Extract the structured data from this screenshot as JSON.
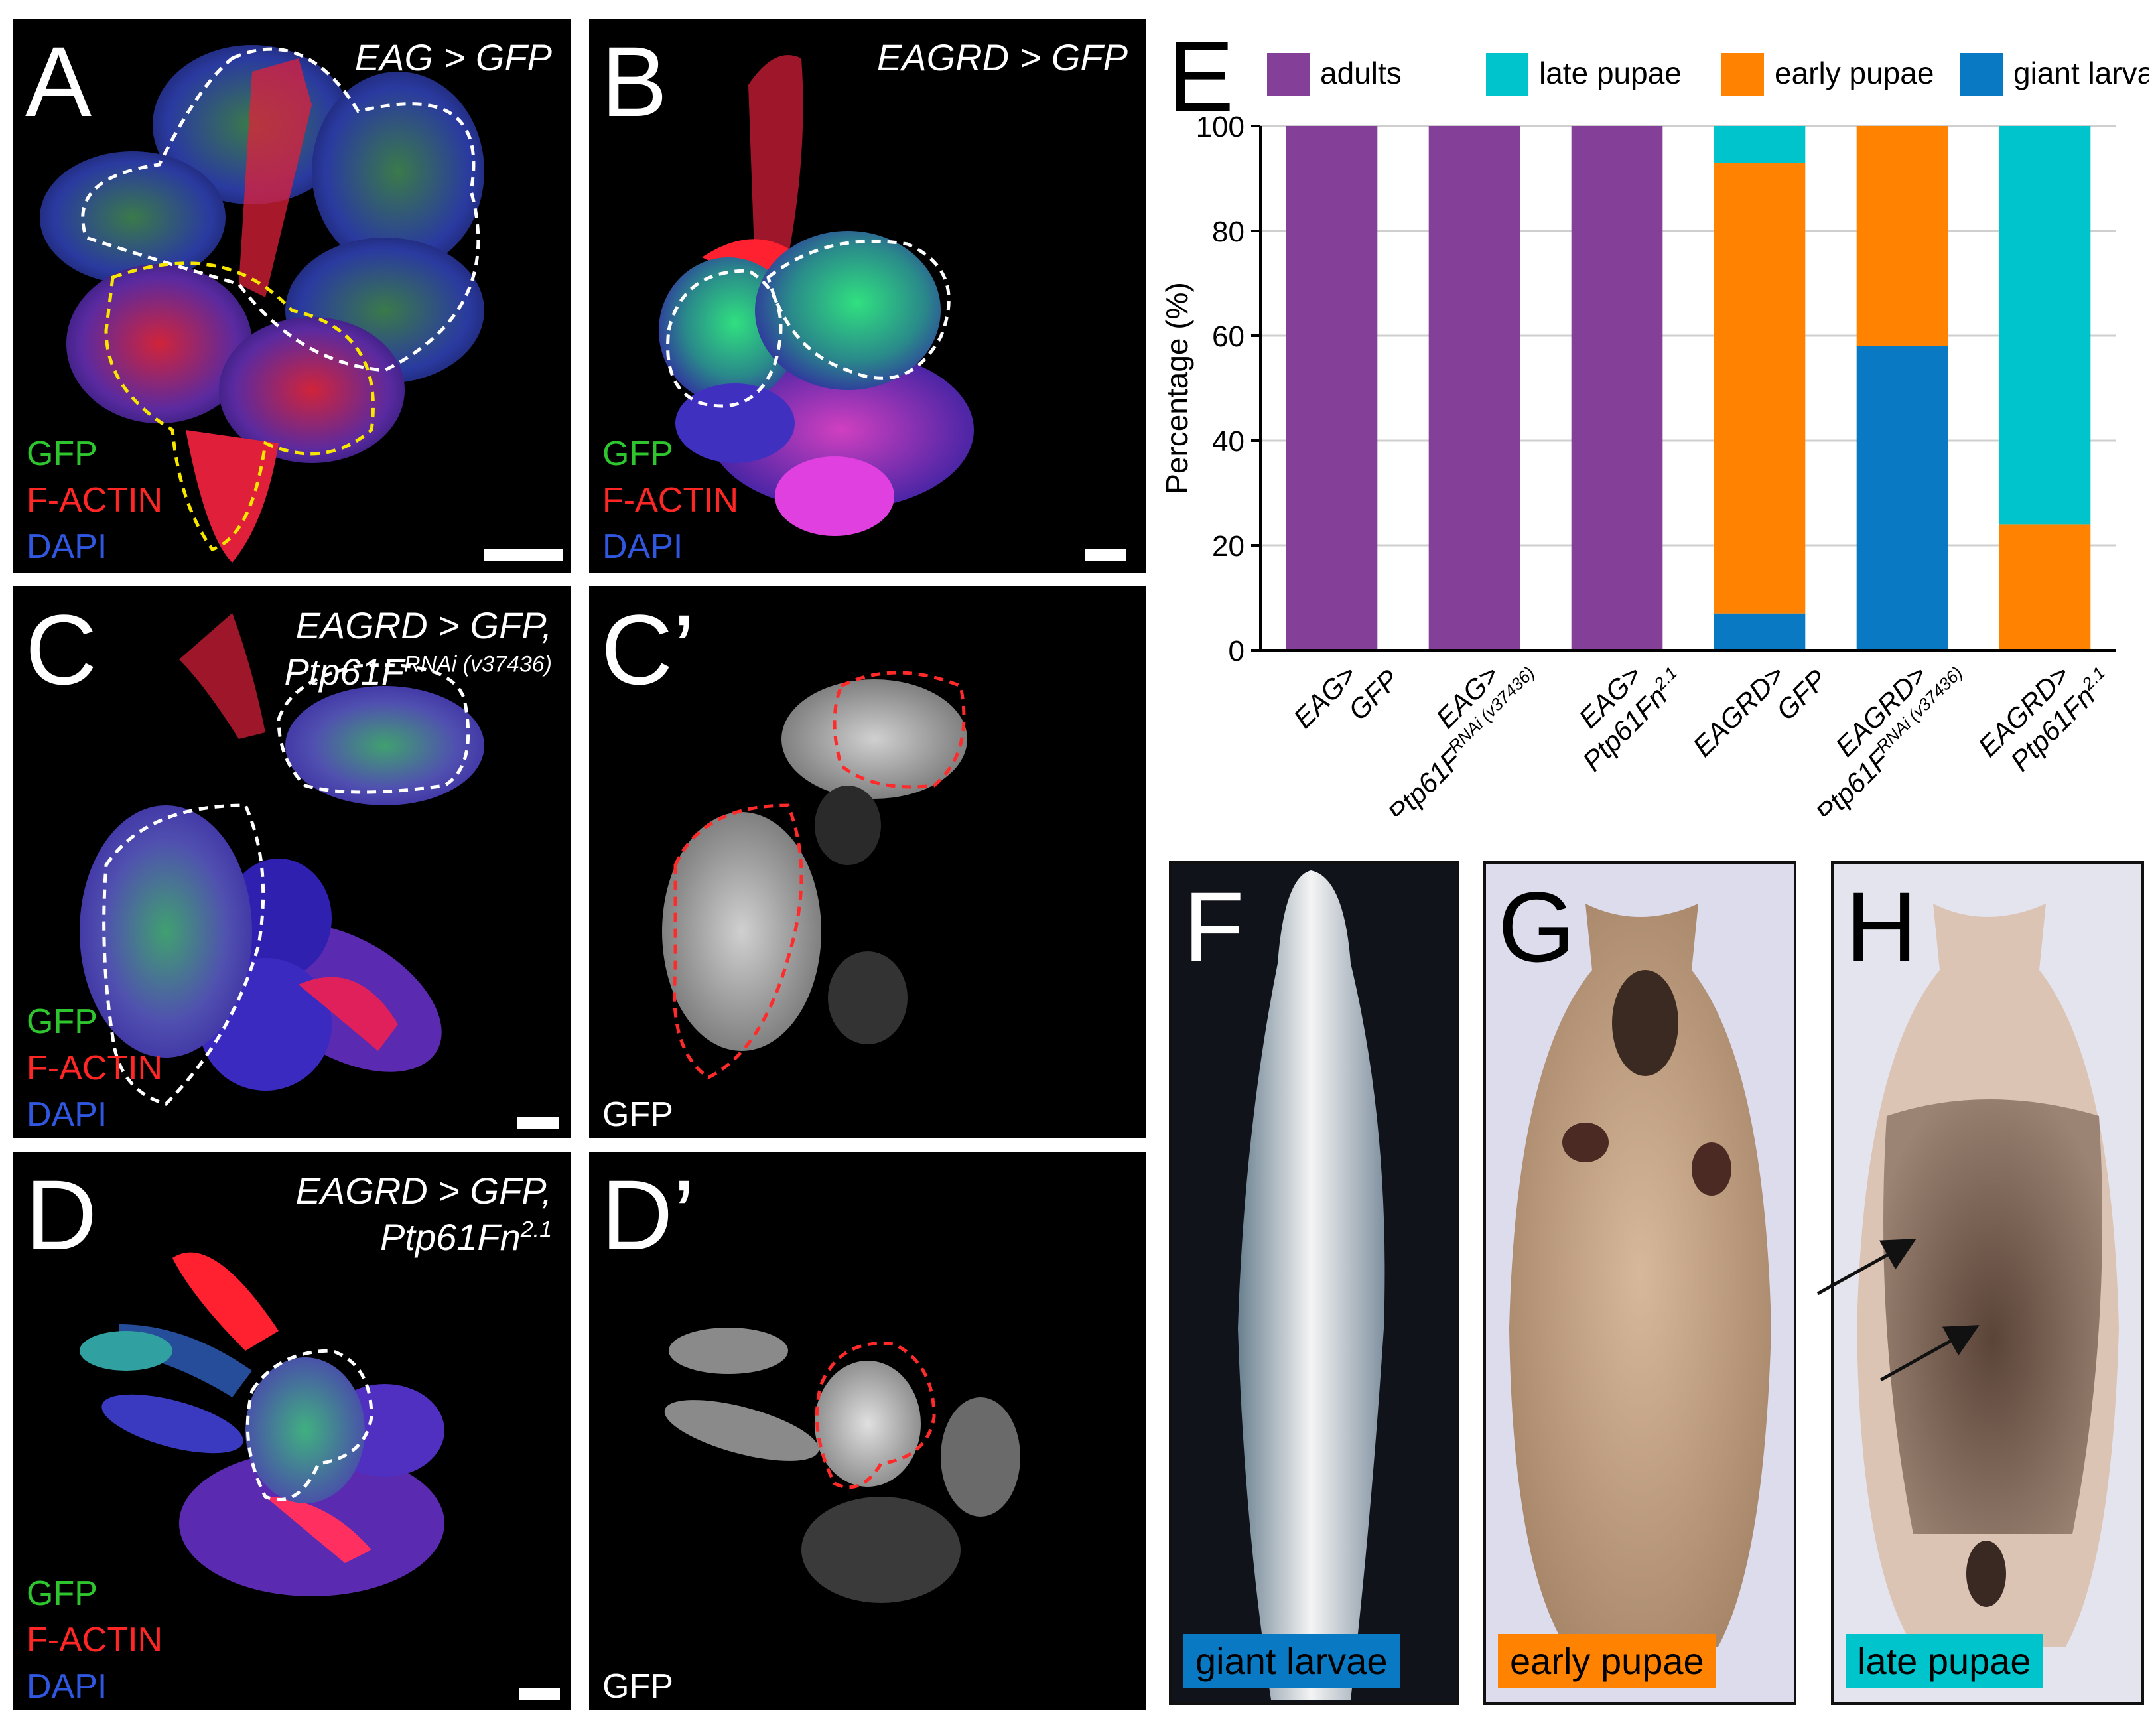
{
  "panels": {
    "A": {
      "letter": "A",
      "title": "EAG > GFP",
      "channels": [
        "GFP",
        "F-ACTIN",
        "DAPI"
      ]
    },
    "B": {
      "letter": "B",
      "title": "EAGRD > GFP",
      "channels": [
        "GFP",
        "F-ACTIN",
        "DAPI"
      ]
    },
    "C": {
      "letter": "C",
      "title_line1": "EAGRD > GFP,",
      "title_line2": "Ptp61F",
      "title_sup": "RNAi (v37436)",
      "channels": [
        "GFP",
        "F-ACTIN",
        "DAPI"
      ]
    },
    "C2": {
      "letter": "C’",
      "channel": "GFP"
    },
    "D": {
      "letter": "D",
      "title_line1": "EAGRD > GFP,",
      "title_line2": "Ptp61Fn",
      "title_sup": "2.1",
      "channels": [
        "GFP",
        "F-ACTIN",
        "DAPI"
      ]
    },
    "D2": {
      "letter": "D’",
      "channel": "GFP"
    },
    "E": {
      "letter": "E"
    },
    "F": {
      "letter": "F",
      "label": "giant larvae"
    },
    "G": {
      "letter": "G",
      "label": "early pupae"
    },
    "H": {
      "letter": "H",
      "label": "late pupae"
    }
  },
  "colors": {
    "adults": "#843f98",
    "late_pupae": "#00c4cc",
    "early_pupae": "#ff8200",
    "giant_larvae": "#0a79c4",
    "gfp_channel": "#2fc52f",
    "factin_channel": "#ff2626",
    "dapi_channel": "#3057e0"
  },
  "chart_data": {
    "type": "bar",
    "stacked": true,
    "ylabel": "Percentage (%)",
    "ylim": [
      0,
      100
    ],
    "yticks": [
      0,
      20,
      40,
      60,
      80,
      100
    ],
    "grid": true,
    "legend_position": "top",
    "categories": [
      {
        "line1": "EAG>",
        "line2": "GFP",
        "sup": ""
      },
      {
        "line1": "EAG>",
        "line2": "Ptp61F",
        "sup": "RNAi (v37436)"
      },
      {
        "line1": "EAG>",
        "line2": "Ptp61Fn",
        "sup": "2.1"
      },
      {
        "line1": "EAGRD>",
        "line2": "GFP",
        "sup": ""
      },
      {
        "line1": "EAGRD>",
        "line2": "Ptp61F",
        "sup": "RNAi (v37436)"
      },
      {
        "line1": "EAGRD>",
        "line2": "Ptp61Fn",
        "sup": "2.1"
      }
    ],
    "series": [
      {
        "name": "giant larvae",
        "color": "#0a79c4",
        "values": [
          0,
          0,
          0,
          7,
          58,
          0
        ]
      },
      {
        "name": "early pupae",
        "color": "#ff8200",
        "values": [
          0,
          0,
          0,
          86,
          42,
          24
        ]
      },
      {
        "name": "late pupae",
        "color": "#00c4cc",
        "values": [
          0,
          0,
          0,
          7,
          0,
          76
        ]
      },
      {
        "name": "adults",
        "color": "#843f98",
        "values": [
          100,
          100,
          100,
          0,
          0,
          0
        ]
      }
    ],
    "legend_order": [
      "adults",
      "late pupae",
      "early pupae",
      "giant larvae"
    ]
  }
}
